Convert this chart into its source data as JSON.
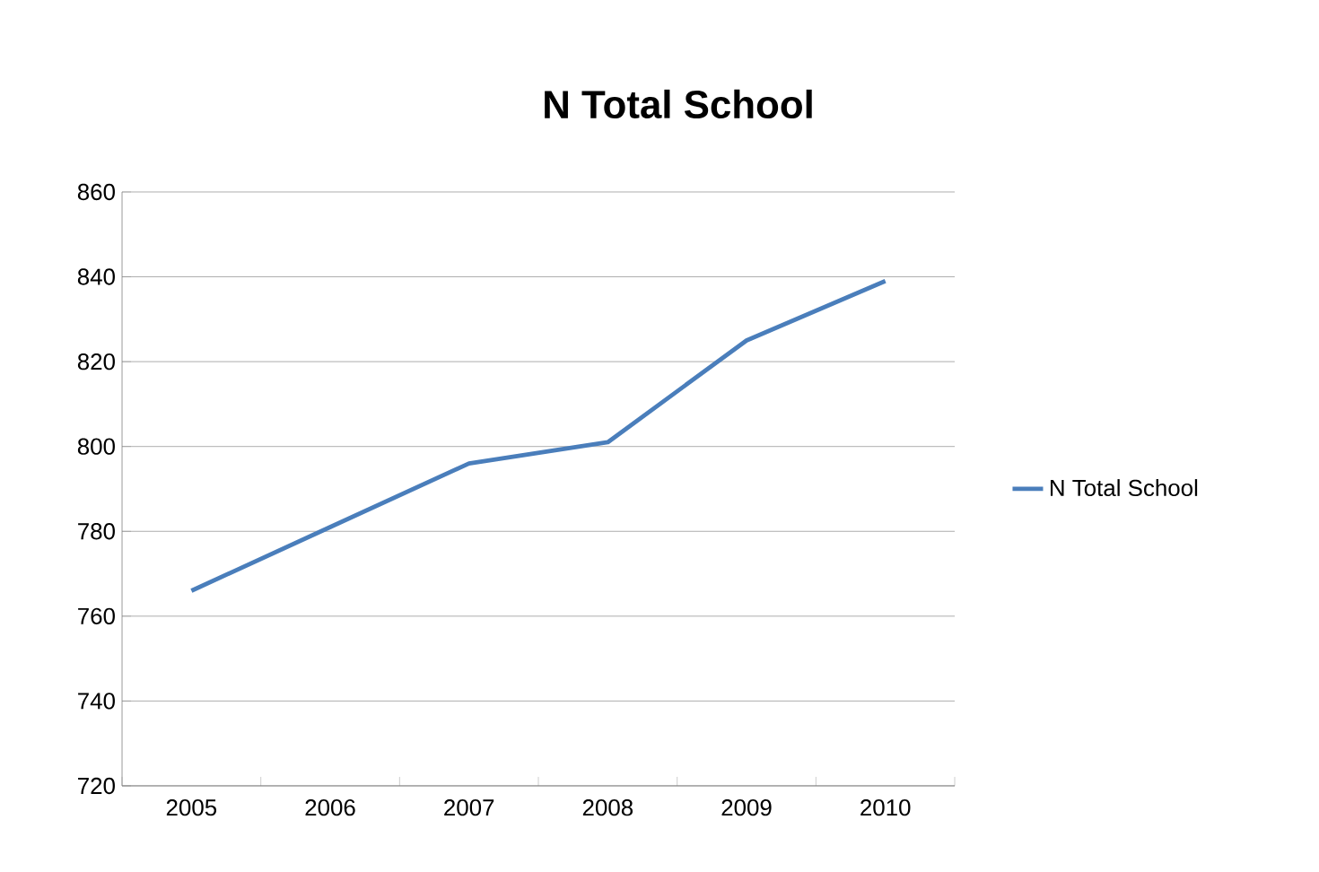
{
  "chart_data": {
    "type": "line",
    "title": "N Total School",
    "categories": [
      "2005",
      "2006",
      "2007",
      "2008",
      "2009",
      "2010"
    ],
    "series": [
      {
        "name": "N Total School",
        "color": "#4a7ebb",
        "values": [
          766,
          781,
          796,
          801,
          825,
          839
        ]
      }
    ],
    "ylim": [
      720,
      860
    ],
    "yticks": [
      720,
      740,
      760,
      780,
      800,
      820,
      840,
      860
    ],
    "grid": "y",
    "legend": "right",
    "marker": "none",
    "line_style": "solid"
  }
}
